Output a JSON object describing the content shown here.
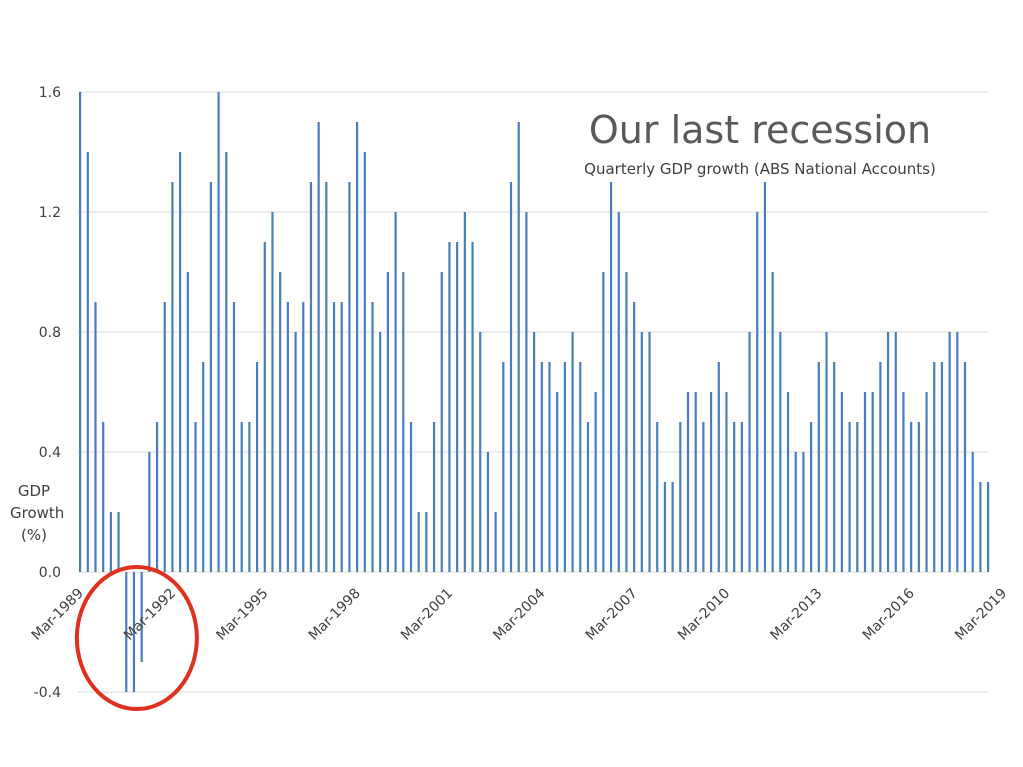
{
  "chart_data": {
    "type": "bar",
    "title": "Our last recession",
    "subtitle": "Quarterly GDP growth (ABS National Accounts)",
    "ylabel_lines": [
      "GDP",
      "Growth",
      "(%)"
    ],
    "ylim": [
      -0.4,
      1.6
    ],
    "yticks": [
      "-0.4",
      "0.0",
      "0.4",
      "0.8",
      "1.2",
      "1.6"
    ],
    "grid": true,
    "x_start": "Mar-1989",
    "x_end": "Mar-2019",
    "xtick_labels": [
      "Mar-1989",
      "Mar-1992",
      "Mar-1995",
      "Mar-1998",
      "Mar-2001",
      "Mar-2004",
      "Mar-2007",
      "Mar-2010",
      "Mar-2013",
      "Mar-2016",
      "Mar-2019"
    ],
    "bar_color": "#4a7ebb",
    "highlight": {
      "label": "recession",
      "color": "#e0301e",
      "period": [
        "Mar-1990",
        "Jun-1991"
      ]
    },
    "values": [
      1.6,
      1.4,
      0.9,
      0.5,
      0.2,
      0.2,
      -0.4,
      -0.4,
      -0.3,
      0.4,
      0.5,
      0.9,
      1.3,
      1.4,
      1.0,
      0.5,
      0.7,
      1.3,
      1.6,
      1.4,
      0.9,
      0.5,
      0.5,
      0.7,
      1.1,
      1.2,
      1.0,
      0.9,
      0.8,
      0.9,
      1.3,
      1.5,
      1.3,
      0.9,
      0.9,
      1.3,
      1.5,
      1.4,
      0.9,
      0.8,
      1.0,
      1.2,
      1.0,
      0.5,
      0.2,
      0.2,
      0.5,
      1.0,
      1.1,
      1.1,
      1.2,
      1.1,
      0.8,
      0.4,
      0.2,
      0.7,
      1.3,
      1.5,
      1.2,
      0.8,
      0.7,
      0.7,
      0.6,
      0.7,
      0.8,
      0.7,
      0.5,
      0.6,
      1.0,
      1.3,
      1.2,
      1.0,
      0.9,
      0.8,
      0.8,
      0.5,
      0.3,
      0.3,
      0.5,
      0.6,
      0.6,
      0.5,
      0.6,
      0.7,
      0.6,
      0.5,
      0.5,
      0.8,
      1.2,
      1.3,
      1.0,
      0.8,
      0.6,
      0.4,
      0.4,
      0.5,
      0.7,
      0.8,
      0.7,
      0.6,
      0.5,
      0.5,
      0.6,
      0.6,
      0.7,
      0.8,
      0.8,
      0.6,
      0.5,
      0.5,
      0.6,
      0.7,
      0.7,
      0.8,
      0.8,
      0.7,
      0.4,
      0.3,
      0.3
    ]
  }
}
